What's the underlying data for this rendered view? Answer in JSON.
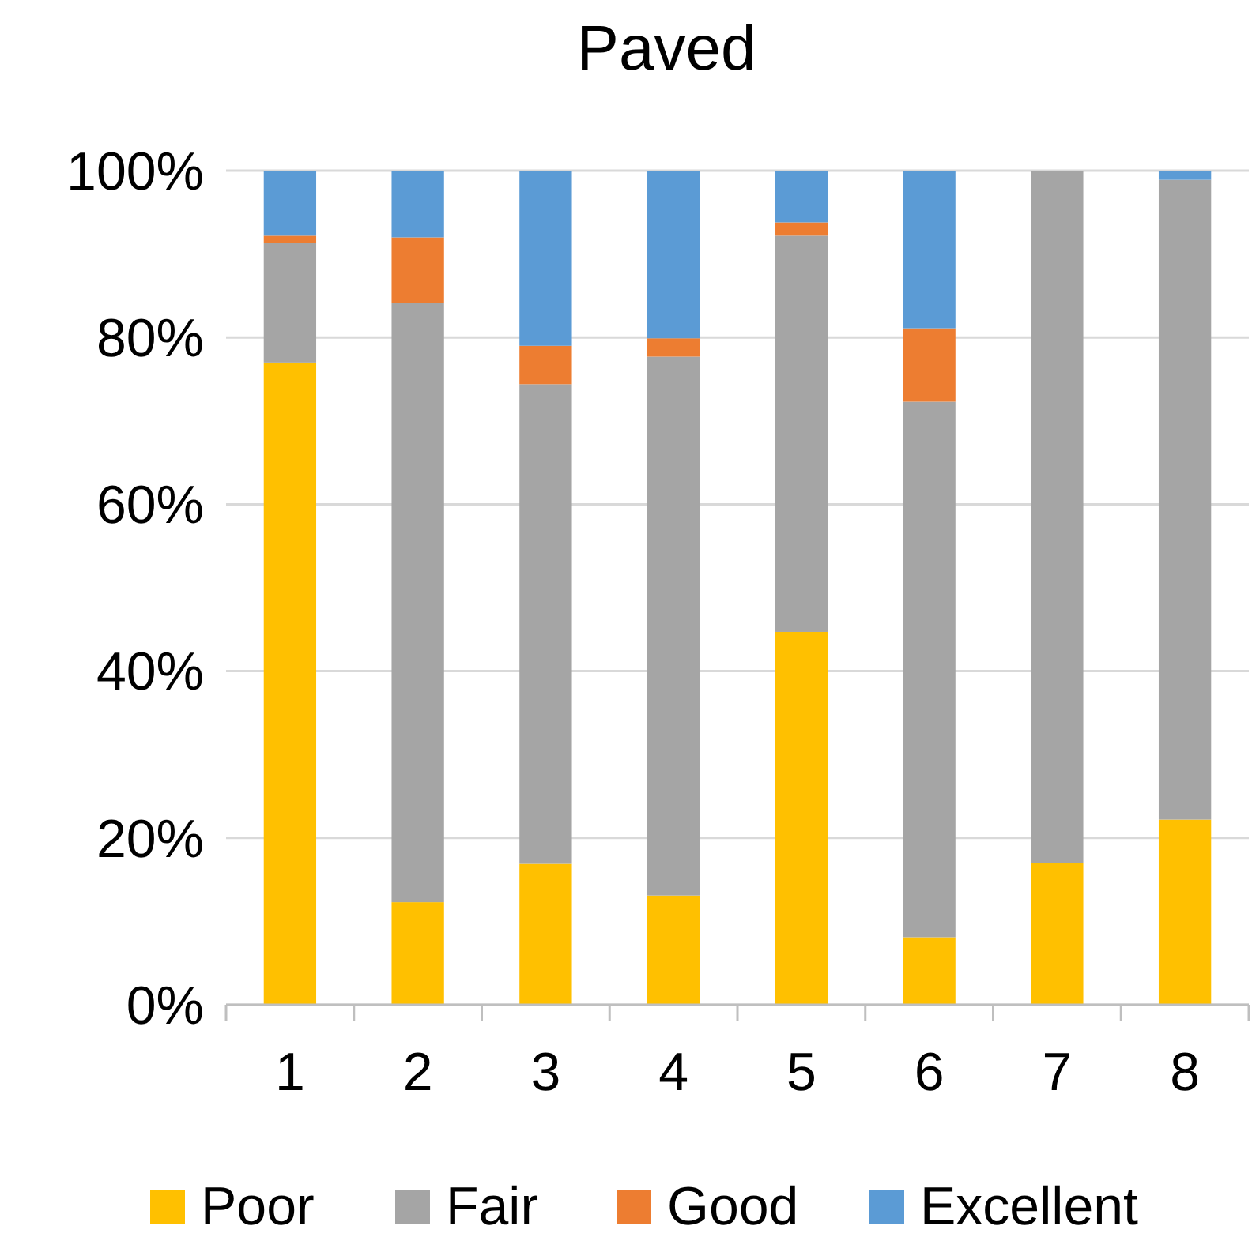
{
  "chart_data": {
    "type": "bar",
    "title": "Paved",
    "stacked": true,
    "categories": [
      "1",
      "2",
      "3",
      "4",
      "5",
      "6",
      "7",
      "8"
    ],
    "series": [
      {
        "name": "Poor",
        "color": "#ffc000",
        "values": [
          77,
          12.3,
          16.9,
          13.1,
          44.7,
          8.1,
          17,
          22.2
        ]
      },
      {
        "name": "Fair",
        "color": "#a5a5a5",
        "values": [
          14.3,
          71.8,
          57.5,
          64.6,
          47.5,
          64.2,
          83,
          76.7
        ]
      },
      {
        "name": "Good",
        "color": "#ed7d31",
        "values": [
          0.9,
          7.9,
          4.6,
          2.2,
          1.6,
          8.8,
          0,
          0
        ]
      },
      {
        "name": "Excellent",
        "color": "#5b9bd5",
        "values": [
          7.8,
          8,
          21,
          20.1,
          6.2,
          18.9,
          0,
          1.1
        ]
      }
    ],
    "ylim": [
      0,
      100
    ],
    "yticks": [
      {
        "value": 0,
        "label": "0%"
      },
      {
        "value": 20,
        "label": "20%"
      },
      {
        "value": 40,
        "label": "40%"
      },
      {
        "value": 60,
        "label": "60%"
      },
      {
        "value": 80,
        "label": "80%"
      },
      {
        "value": 100,
        "label": "100%"
      }
    ],
    "grid": "y",
    "legend": "bottom"
  }
}
